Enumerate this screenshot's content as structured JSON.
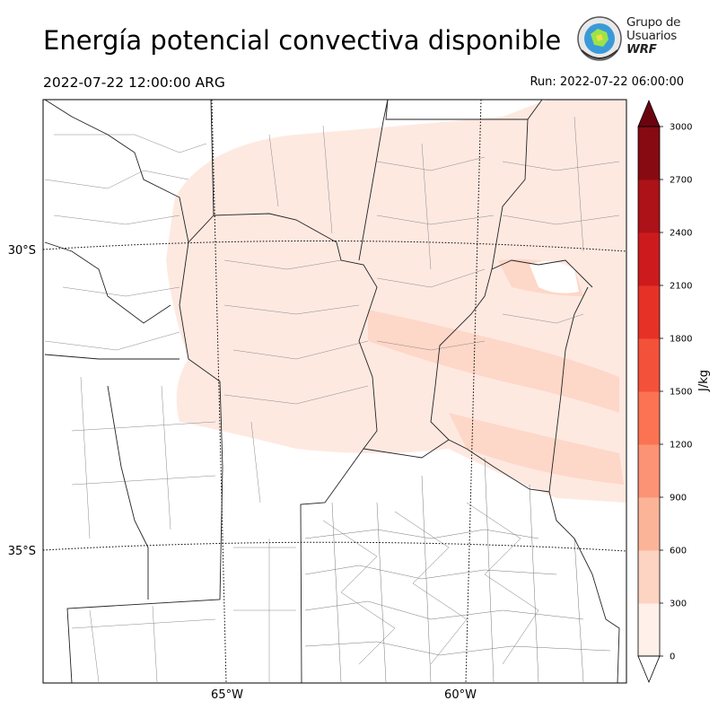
{
  "title": "Energía potencial convectiva disponible",
  "valid_time": "2022-07-22 12:00:00 ARG",
  "run_time": "Run: 2022-07-22 06:00:00",
  "logo": {
    "line1": "Grupo de",
    "line2": "Usuarios",
    "line3": "WRF"
  },
  "map": {
    "lat_labels": [
      "30°S",
      "35°S"
    ],
    "lon_labels": [
      "65°W",
      "60°W"
    ],
    "field_colors": {
      "light": "#fee9e1",
      "medium": "#fdd7c8"
    }
  },
  "colorbar": {
    "units": "J/kg",
    "ticks": [
      "0",
      "300",
      "600",
      "900",
      "1200",
      "1500",
      "1800",
      "2100",
      "2400",
      "2700",
      "3000"
    ],
    "colors": [
      "#fff0ea",
      "#fdd4c2",
      "#fcb499",
      "#fc9374",
      "#fb7352",
      "#f4513a",
      "#e63127",
      "#cd1b1d",
      "#ac1217",
      "#870a12"
    ],
    "extend_color": "#6a0510"
  }
}
